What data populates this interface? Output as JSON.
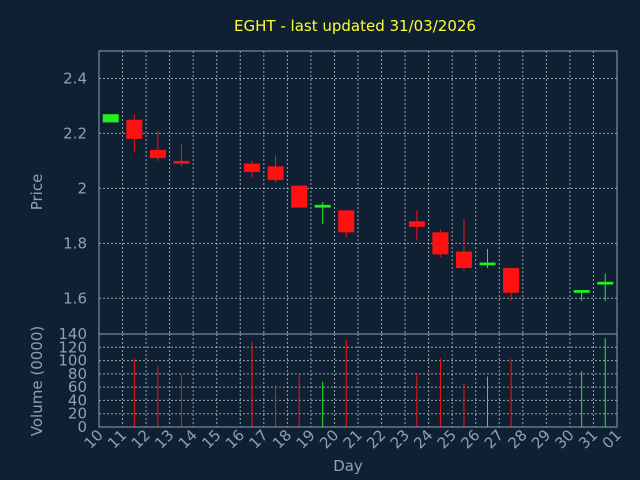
{
  "chart_data": {
    "type": "candlestick",
    "title": "EGHT - last updated 31/03/2026",
    "xlabel": "Day",
    "colors": {
      "background": "#0f2033",
      "title": "#ffff33",
      "axis_text": "#8fa0b4",
      "up": "#22ee22",
      "down": "#ff1111"
    },
    "x_ticks": [
      "10",
      "11",
      "12",
      "13",
      "14",
      "15",
      "16",
      "17",
      "18",
      "19",
      "20",
      "21",
      "22",
      "23",
      "24",
      "25",
      "26",
      "27",
      "28",
      "29",
      "30",
      "31",
      "01"
    ],
    "price_panel": {
      "ylabel": "Price",
      "ylim": [
        1.47,
        2.5
      ],
      "y_ticks": [
        "1.6",
        "1.8",
        "2",
        "2.2",
        "2.4"
      ],
      "y_tick_values": [
        1.6,
        1.8,
        2.0,
        2.2,
        2.4
      ],
      "grid": true
    },
    "volume_panel": {
      "ylabel": "Volume (0000)",
      "ylim": [
        0,
        140
      ],
      "y_ticks": [
        "0",
        "20",
        "40",
        "60",
        "80",
        "100",
        "120",
        "140"
      ],
      "y_tick_values": [
        0,
        20,
        40,
        60,
        80,
        100,
        120,
        140
      ],
      "grid": true
    },
    "candles": [
      {
        "day": "10",
        "open": 2.24,
        "high": 2.27,
        "low": 2.24,
        "close": 2.27,
        "volume": 0
      },
      {
        "day": "11",
        "open": 2.25,
        "high": 2.27,
        "low": 2.13,
        "close": 2.18,
        "volume": 103
      },
      {
        "day": "12",
        "open": 2.14,
        "high": 2.21,
        "low": 2.1,
        "close": 2.11,
        "volume": 92
      },
      {
        "day": "13",
        "open": 2.1,
        "high": 2.16,
        "low": 2.08,
        "close": 2.09,
        "volume": 79
      },
      {
        "day": "16",
        "open": 2.09,
        "high": 2.1,
        "low": 2.04,
        "close": 2.06,
        "volume": 128
      },
      {
        "day": "17",
        "open": 2.08,
        "high": 2.12,
        "low": 2.02,
        "close": 2.03,
        "volume": 63
      },
      {
        "day": "18",
        "open": 2.01,
        "high": 2.01,
        "low": 1.93,
        "close": 1.93,
        "volume": 79
      },
      {
        "day": "19",
        "open": 1.93,
        "high": 1.95,
        "low": 1.87,
        "close": 1.94,
        "volume": 68
      },
      {
        "day": "20",
        "open": 1.92,
        "high": 1.92,
        "low": 1.82,
        "close": 1.84,
        "volume": 131
      },
      {
        "day": "23",
        "open": 1.88,
        "high": 1.92,
        "low": 1.81,
        "close": 1.86,
        "volume": 82
      },
      {
        "day": "24",
        "open": 1.84,
        "high": 1.85,
        "low": 1.75,
        "close": 1.76,
        "volume": 103
      },
      {
        "day": "25",
        "open": 1.77,
        "high": 1.89,
        "low": 1.7,
        "close": 1.71,
        "volume": 66
      },
      {
        "day": "26",
        "open": 1.72,
        "high": 1.78,
        "low": 1.71,
        "close": 1.73,
        "volume": 76
      },
      {
        "day": "27",
        "open": 1.71,
        "high": 1.71,
        "low": 1.59,
        "close": 1.62,
        "volume": 102
      },
      {
        "day": "30",
        "open": 1.62,
        "high": 1.63,
        "low": 1.59,
        "close": 1.63,
        "volume": 84
      },
      {
        "day": "31",
        "open": 1.65,
        "high": 1.69,
        "low": 1.59,
        "close": 1.66,
        "volume": 134
      }
    ]
  }
}
